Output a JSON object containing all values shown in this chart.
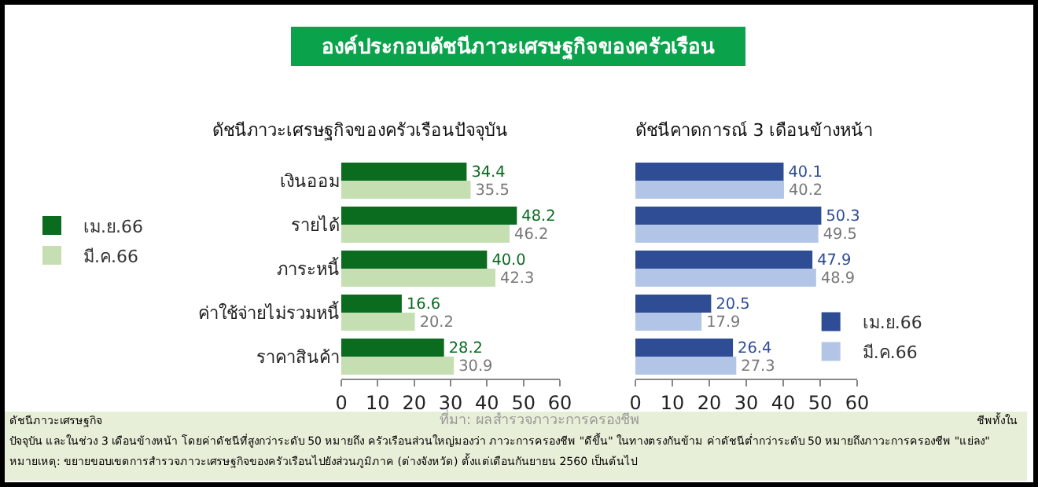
{
  "chart_data": [
    {
      "type": "bar",
      "title": "องค์ประกอบดัชนีภาวะเศรษฐกิจของครัวเรือน",
      "subtitle": "ดัชนีภาวะเศรษฐกิจของครัวเรือนปัจจุบัน",
      "orientation": "horizontal",
      "categories": [
        "เงินออม",
        "รายได้",
        "ภาระหนี้",
        "ค่าใช้จ่ายไม่รวมหนี้",
        "ราคาสินค้า"
      ],
      "series": [
        {
          "name": "เม.ย.66",
          "color": "#0b6b1f",
          "values": [
            34.4,
            48.2,
            40.0,
            16.6,
            28.2
          ],
          "value_labels": [
            "34.4",
            "48.2",
            "40.0",
            "16.6",
            "28.2"
          ]
        },
        {
          "name": "มี.ค.66",
          "color": "#c5dfb2",
          "values": [
            35.5,
            46.2,
            42.3,
            20.2,
            30.9
          ],
          "value_labels": [
            "35.5",
            "46.2",
            "42.3",
            "20.2",
            "30.9"
          ]
        }
      ],
      "xlim": [
        0,
        60
      ],
      "xticks": [
        0,
        10,
        20,
        30,
        40,
        50,
        60
      ],
      "legend": "left",
      "annotations": [
        "ดัชนีภาวะเศรษฐกิจ",
        "ที่มา: ผลสำรวจภาวะการครองชีพ",
        "ชีพทั้งใน",
        "ปัจจุบัน และในช่วง 3 เดือนข้างหน้า โดยค่าดัชนีที่สูงกว่าระดับ 50 หมายถึง ครัวเรือนส่วนใหญ่มองว่า ภาวะการครองชีพ \"ดีขึ้น\" ในทางตรงกันข้าม ค่าดัชนีต่ำกว่าระดับ 50 หมายถึงภาวะการครองชีพ \"แย่ลง\"",
        "หมายเหตุ: ขยายขอบเขตการสำรวจภาวะเศรษฐกิจของครัวเรือนไปยังส่วนภูมิภาค (ต่างจังหวัด) ตั้งแต่เดือนกันยายน 2560 เป็นต้นไป"
      ]
    },
    {
      "type": "bar",
      "title": "ดัชนีคาดการณ์ 3 เดือนข้างหน้า",
      "orientation": "horizontal",
      "categories": [
        null,
        null,
        null,
        null,
        null
      ],
      "series": [
        {
          "name": "เม.ย.66",
          "color": "#2e4d94",
          "values": [
            40.1,
            50.3,
            47.9,
            20.5,
            26.4
          ],
          "value_labels": [
            "40.1",
            "50.3",
            "47.9",
            "20.5",
            "26.4"
          ]
        },
        {
          "name": "มี.ค.66",
          "color": "#b3c5e6",
          "values": [
            40.2,
            49.5,
            48.9,
            17.9,
            27.3
          ],
          "value_labels": [
            "40.2",
            "49.5",
            "48.9",
            "17.9",
            "27.3"
          ]
        }
      ],
      "xlim": [
        0,
        60
      ],
      "xticks": [
        0,
        10,
        20,
        30,
        40,
        50,
        60
      ],
      "legend": "bottom right",
      "tick_labels": "x"
    }
  ]
}
